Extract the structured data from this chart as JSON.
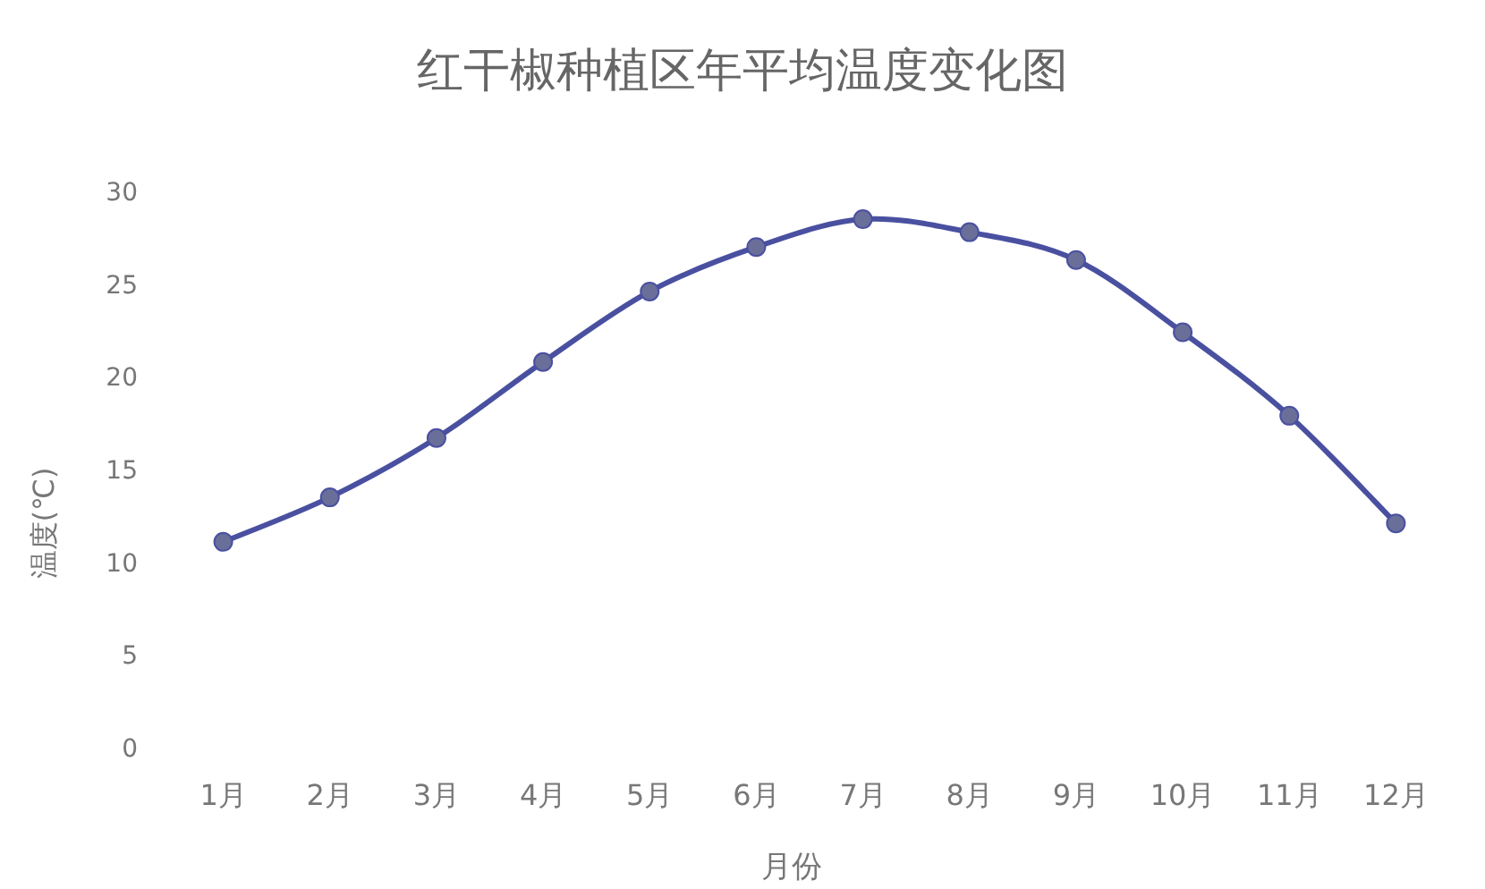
{
  "chart_data": {
    "type": "line",
    "title": "红干椒种植区年平均温度变化图",
    "xlabel": "月份",
    "ylabel": "温度(℃)",
    "categories": [
      "1月",
      "2月",
      "3月",
      "4月",
      "5月",
      "6月",
      "7月",
      "8月",
      "9月",
      "10月",
      "11月",
      "12月"
    ],
    "series": [
      {
        "color": "#4a50a0",
        "values": [
          11.1,
          13.5,
          16.7,
          20.8,
          24.6,
          27.0,
          28.5,
          27.8,
          26.3,
          22.4,
          17.9,
          12.1
        ]
      }
    ],
    "ylim": [
      0,
      30
    ],
    "yticks": [
      0,
      5,
      10,
      15,
      20,
      25,
      30
    ],
    "grid": false,
    "marker": "circle",
    "line_style": "solid"
  }
}
